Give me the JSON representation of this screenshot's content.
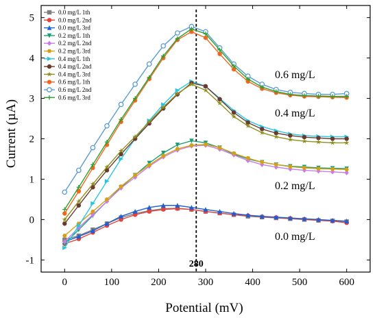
{
  "chart_data": {
    "type": "scatter",
    "title": "",
    "xlabel": "Potential (mV)",
    "ylabel": "Current (µA)",
    "xlim": [
      -50,
      650
    ],
    "ylim": [
      -1.3,
      5.3
    ],
    "x_ticks": [
      0,
      100,
      200,
      300,
      400,
      500,
      600
    ],
    "y_ticks": [
      -1,
      0,
      1,
      2,
      3,
      4,
      5
    ],
    "grid": false,
    "legend_position": "top-left",
    "vline": {
      "x": 280,
      "label": "280"
    },
    "annotations": [
      {
        "text": "0.6 mg/L",
        "x": 490,
        "y": 3.5
      },
      {
        "text": "0.4 mg/L",
        "x": 490,
        "y": 2.55
      },
      {
        "text": "0.2 mg/L",
        "x": 490,
        "y": 0.75
      },
      {
        "text": "0.0 mg/L",
        "x": 490,
        "y": -0.5
      }
    ],
    "series": [
      {
        "name": "0.0 mg/L 1th",
        "color": "#7f7f7f",
        "marker": "square",
        "x": [
          0,
          30,
          60,
          90,
          120,
          150,
          180,
          210,
          240,
          270,
          300,
          330,
          360,
          390,
          420,
          450,
          480,
          510,
          540,
          570,
          600
        ],
        "y": [
          -0.5,
          -0.4,
          -0.25,
          -0.1,
          0.05,
          0.15,
          0.22,
          0.27,
          0.28,
          0.25,
          0.2,
          0.16,
          0.12,
          0.08,
          0.06,
          0.04,
          0.02,
          0.0,
          -0.02,
          -0.03,
          -0.05
        ]
      },
      {
        "name": "0.0 mg/L 2nd",
        "color": "#e8413a",
        "marker": "circle",
        "x": [
          0,
          30,
          60,
          90,
          120,
          150,
          180,
          210,
          240,
          270,
          300,
          330,
          360,
          390,
          420,
          450,
          480,
          510,
          540,
          570,
          600
        ],
        "y": [
          -0.6,
          -0.48,
          -0.32,
          -0.15,
          0.0,
          0.12,
          0.2,
          0.25,
          0.27,
          0.25,
          0.2,
          0.16,
          0.12,
          0.1,
          0.07,
          0.05,
          0.03,
          0.01,
          -0.02,
          -0.04,
          -0.08
        ]
      },
      {
        "name": "0.0 mg/L 3rd",
        "color": "#1a5fd6",
        "marker": "triangle-up",
        "x": [
          0,
          30,
          60,
          90,
          120,
          150,
          180,
          210,
          240,
          270,
          300,
          330,
          360,
          390,
          420,
          450,
          480,
          510,
          540,
          570,
          600
        ],
        "y": [
          -0.55,
          -0.42,
          -0.28,
          -0.1,
          0.08,
          0.2,
          0.3,
          0.35,
          0.35,
          0.3,
          0.25,
          0.2,
          0.15,
          0.11,
          0.08,
          0.06,
          0.04,
          0.02,
          0.0,
          -0.02,
          -0.04
        ]
      },
      {
        "name": "0.2 mg/L 1th",
        "color": "#1a9e74",
        "marker": "triangle-down",
        "x": [
          0,
          30,
          60,
          90,
          120,
          150,
          180,
          210,
          240,
          270,
          300,
          330,
          360,
          390,
          420,
          450,
          480,
          510,
          540,
          570,
          600
        ],
        "y": [
          -0.6,
          -0.25,
          0.1,
          0.45,
          0.8,
          1.1,
          1.4,
          1.65,
          1.85,
          1.95,
          1.9,
          1.78,
          1.62,
          1.5,
          1.42,
          1.36,
          1.32,
          1.3,
          1.28,
          1.27,
          1.26
        ]
      },
      {
        "name": "0.2 mg/L 2nd",
        "color": "#c77de6",
        "marker": "diamond",
        "x": [
          0,
          30,
          60,
          90,
          120,
          150,
          180,
          210,
          240,
          270,
          300,
          330,
          360,
          390,
          420,
          450,
          480,
          510,
          540,
          570,
          600
        ],
        "y": [
          -0.55,
          -0.2,
          0.12,
          0.45,
          0.78,
          1.05,
          1.32,
          1.55,
          1.72,
          1.82,
          1.84,
          1.74,
          1.6,
          1.46,
          1.36,
          1.3,
          1.25,
          1.22,
          1.2,
          1.18,
          1.16
        ]
      },
      {
        "name": "0.2 mg/L 3rd",
        "color": "#d4a017",
        "marker": "hexagon",
        "x": [
          0,
          30,
          60,
          90,
          120,
          150,
          180,
          210,
          240,
          270,
          300,
          330,
          360,
          390,
          420,
          450,
          480,
          510,
          540,
          570,
          600
        ],
        "y": [
          -0.4,
          -0.1,
          0.2,
          0.5,
          0.82,
          1.1,
          1.35,
          1.58,
          1.75,
          1.84,
          1.86,
          1.78,
          1.64,
          1.52,
          1.42,
          1.36,
          1.31,
          1.28,
          1.26,
          1.25,
          1.24
        ]
      },
      {
        "name": "0.4 mg/L 1th",
        "color": "#29c6e0",
        "marker": "triangle-right",
        "x": [
          0,
          30,
          60,
          90,
          120,
          150,
          180,
          210,
          240,
          270,
          300,
          330,
          360,
          390,
          420,
          450,
          480,
          510,
          540,
          570,
          600
        ],
        "y": [
          -0.7,
          -0.15,
          0.4,
          0.95,
          1.5,
          2.0,
          2.45,
          2.85,
          3.2,
          3.42,
          3.3,
          3.0,
          2.7,
          2.45,
          2.3,
          2.2,
          2.12,
          2.08,
          2.06,
          2.05,
          2.05
        ]
      },
      {
        "name": "0.4 mg/L 2nd",
        "color": "#6b3a2e",
        "marker": "circle",
        "x": [
          0,
          30,
          60,
          90,
          120,
          150,
          180,
          210,
          240,
          270,
          300,
          330,
          360,
          390,
          420,
          450,
          480,
          510,
          540,
          570,
          600
        ],
        "y": [
          -0.1,
          0.35,
          0.8,
          1.22,
          1.62,
          2.0,
          2.38,
          2.75,
          3.1,
          3.38,
          3.3,
          2.98,
          2.65,
          2.4,
          2.24,
          2.14,
          2.08,
          2.04,
          2.02,
          2.0,
          2.0
        ]
      },
      {
        "name": "0.4 mg/L 3rd",
        "color": "#8e8e1c",
        "marker": "star",
        "x": [
          0,
          30,
          60,
          90,
          120,
          150,
          180,
          210,
          240,
          270,
          300,
          330,
          360,
          390,
          420,
          450,
          480,
          510,
          540,
          570,
          600
        ],
        "y": [
          0.0,
          0.45,
          0.88,
          1.3,
          1.7,
          2.05,
          2.42,
          2.78,
          3.12,
          3.35,
          3.2,
          2.88,
          2.55,
          2.32,
          2.15,
          2.05,
          1.98,
          1.94,
          1.92,
          1.9,
          1.9
        ]
      },
      {
        "name": "0.6 mg/L 1th",
        "color": "#f2661f",
        "marker": "circle",
        "x": [
          0,
          30,
          60,
          90,
          120,
          150,
          180,
          210,
          240,
          270,
          300,
          330,
          360,
          390,
          420,
          450,
          480,
          510,
          540,
          570,
          600
        ],
        "y": [
          0.15,
          0.7,
          1.28,
          1.85,
          2.42,
          2.95,
          3.48,
          4.0,
          4.45,
          4.65,
          4.5,
          4.1,
          3.72,
          3.42,
          3.24,
          3.14,
          3.08,
          3.05,
          3.04,
          3.03,
          3.02
        ]
      },
      {
        "name": "0.6 mg/L 2nd",
        "color": "#5a9bd5",
        "marker": "circle-open",
        "x": [
          0,
          30,
          60,
          90,
          120,
          150,
          180,
          210,
          240,
          270,
          300,
          330,
          360,
          390,
          420,
          450,
          480,
          510,
          540,
          570,
          600
        ],
        "y": [
          0.68,
          1.22,
          1.78,
          2.32,
          2.85,
          3.35,
          3.85,
          4.3,
          4.62,
          4.78,
          4.65,
          4.25,
          3.85,
          3.55,
          3.35,
          3.22,
          3.15,
          3.12,
          3.1,
          3.1,
          3.12
        ]
      },
      {
        "name": "0.6 mg/L 3rd",
        "color": "#2ca02c",
        "marker": "plus",
        "x": [
          0,
          30,
          60,
          90,
          120,
          150,
          180,
          210,
          240,
          270,
          300,
          330,
          360,
          390,
          420,
          450,
          480,
          510,
          540,
          570,
          600
        ],
        "y": [
          0.25,
          0.8,
          1.36,
          1.92,
          2.48,
          3.0,
          3.52,
          4.05,
          4.48,
          4.72,
          4.6,
          4.2,
          3.8,
          3.48,
          3.28,
          3.17,
          3.1,
          3.07,
          3.06,
          3.05,
          3.05
        ]
      }
    ]
  }
}
